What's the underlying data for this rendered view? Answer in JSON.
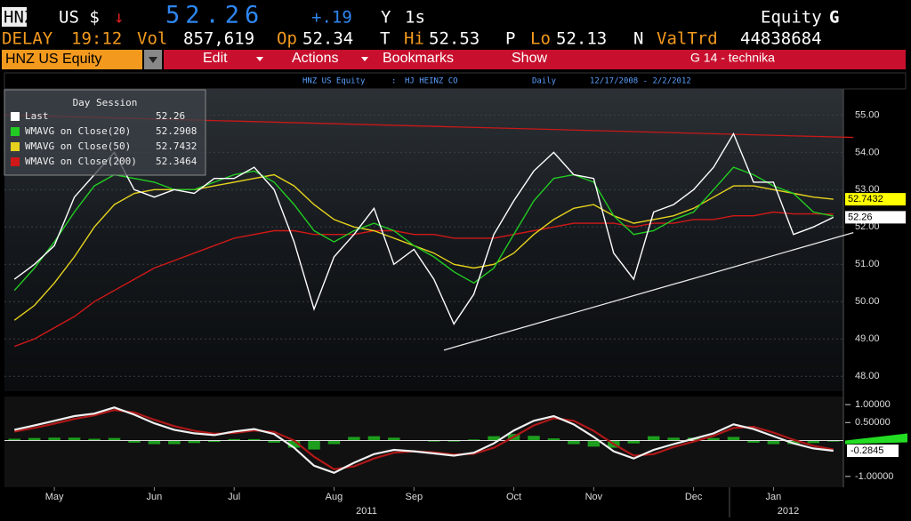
{
  "header": {
    "ticker": "HNZ",
    "currency": "US $",
    "arrow": "↓",
    "last": 52.26,
    "change": "+.19",
    "y_label": "Y",
    "interval": "1s",
    "market": "Equity",
    "menu_key": "G",
    "delay_label": "DELAY",
    "time": "19:12",
    "vol_label": "Vol",
    "volume": "857,619",
    "open_label": "Op",
    "open": 52.34,
    "t_label": "T",
    "hi_label": "Hi",
    "high": 52.53,
    "p_label": "P",
    "lo_label": "Lo",
    "low": 52.13,
    "n_label": "N",
    "valtrd_label": "ValTrd",
    "valtrd": 44838684
  },
  "toolbar": {
    "security": "HNZ US Equity",
    "menus": [
      "Edit",
      "Actions",
      "Bookmarks",
      "Show"
    ],
    "page": "G 14 - technika"
  },
  "info_bar": {
    "security": "HNZ US Equity",
    "separator": ":",
    "company": "HJ HEINZ CO",
    "period": "Daily",
    "range": "12/17/2008 - 2/2/2012"
  },
  "chart_data": [
    {
      "type": "line",
      "legend_title": "Day Session",
      "grid": true,
      "categories": [
        null,
        null,
        "May",
        null,
        null,
        null,
        null,
        "Jun",
        null,
        null,
        null,
        "Jul",
        null,
        null,
        null,
        null,
        "Aug",
        null,
        null,
        null,
        "Sep",
        null,
        null,
        null,
        null,
        "Oct",
        null,
        null,
        null,
        "Nov",
        null,
        null,
        null,
        null,
        "Dec",
        null,
        null,
        null,
        "Jan",
        null,
        null,
        null
      ],
      "x_group_labels": [
        "2011",
        "2012"
      ],
      "ylim": [
        47.6,
        55.7
      ],
      "yticks": [
        {
          "value": 48,
          "label": "48.00"
        },
        {
          "value": 49,
          "label": "49.00"
        },
        {
          "value": 50,
          "label": "50.00"
        },
        {
          "value": 51,
          "label": "51.00"
        },
        {
          "value": 52,
          "label": "52.00"
        },
        {
          "value": 53,
          "label": "53.00"
        },
        {
          "value": 54,
          "label": "54.00"
        },
        {
          "value": 55,
          "label": "55.00"
        }
      ],
      "series": [
        {
          "name": "Last",
          "color": "#ffffff",
          "values": [
            50.6,
            51.0,
            51.5,
            52.8,
            53.4,
            54.0,
            53.0,
            52.8,
            53.0,
            52.9,
            53.3,
            53.3,
            53.6,
            53.0,
            51.6,
            49.8,
            51.2,
            51.8,
            52.5,
            51.0,
            51.4,
            50.6,
            49.4,
            50.2,
            51.8,
            52.7,
            53.5,
            54.0,
            53.4,
            53.3,
            51.3,
            50.6,
            52.4,
            52.6,
            53.0,
            53.6,
            54.5,
            53.2,
            53.2,
            51.8,
            52.0,
            52.26
          ]
        },
        {
          "name": "WMAVG on Close(20)",
          "color": "#22cc22",
          "values": [
            50.3,
            50.9,
            51.6,
            52.4,
            53.1,
            53.4,
            53.3,
            53.2,
            53.0,
            53.0,
            53.2,
            53.4,
            53.5,
            53.2,
            52.6,
            51.9,
            51.6,
            51.9,
            52.1,
            51.9,
            51.5,
            51.2,
            50.8,
            50.5,
            50.9,
            51.8,
            52.7,
            53.3,
            53.4,
            53.2,
            52.3,
            51.8,
            51.9,
            52.2,
            52.4,
            53.0,
            53.6,
            53.4,
            53.1,
            52.9,
            52.4,
            52.2908
          ]
        },
        {
          "name": "WMAVG on Close(50)",
          "color": "#e6d21e",
          "values": [
            49.5,
            49.9,
            50.5,
            51.2,
            52.0,
            52.6,
            52.9,
            53.0,
            53.0,
            53.0,
            53.1,
            53.2,
            53.3,
            53.4,
            53.1,
            52.6,
            52.2,
            52.0,
            51.9,
            51.7,
            51.5,
            51.3,
            51.0,
            50.9,
            51.0,
            51.3,
            51.8,
            52.2,
            52.5,
            52.6,
            52.3,
            52.1,
            52.2,
            52.3,
            52.5,
            52.8,
            53.1,
            53.1,
            53.0,
            52.9,
            52.8,
            52.7432
          ]
        },
        {
          "name": "WMAVG on Close(200)",
          "color": "#d01818",
          "values": [
            48.8,
            49.0,
            49.3,
            49.6,
            50.0,
            50.3,
            50.6,
            50.9,
            51.1,
            51.3,
            51.5,
            51.7,
            51.8,
            51.9,
            51.9,
            51.8,
            51.8,
            51.8,
            51.9,
            51.9,
            51.8,
            51.8,
            51.7,
            51.7,
            51.7,
            51.8,
            51.9,
            52.0,
            52.1,
            52.1,
            52.1,
            52.0,
            52.1,
            52.1,
            52.2,
            52.2,
            52.3,
            52.3,
            52.4,
            52.35,
            52.35,
            52.3464
          ]
        }
      ],
      "legend_values": [
        52.26,
        52.2908,
        52.7432,
        52.3464
      ],
      "price_tags": [
        {
          "value": 52.7432,
          "color": "#ffff00"
        },
        {
          "value": 52.26,
          "color": "#ffffff"
        }
      ],
      "trendlines": [
        {
          "color": "#e8e8e8",
          "x": [
            21.5,
            42
          ],
          "y": [
            48.7,
            51.85
          ]
        },
        {
          "color": "#c81818",
          "x": [
            -0.5,
            42
          ],
          "y": [
            55.0,
            54.4
          ]
        }
      ]
    },
    {
      "type": "line",
      "ylim": [
        -1.3,
        1.225
      ],
      "yticks": [
        {
          "value": 1,
          "label": "1.00000"
        },
        {
          "value": 0.5,
          "label": "0.50000"
        },
        {
          "value": -1,
          "label": "-1.00000"
        }
      ],
      "series": [
        {
          "color": "#f0f0f0",
          "values": [
            0.3,
            0.42,
            0.55,
            0.68,
            0.75,
            0.92,
            0.72,
            0.48,
            0.3,
            0.2,
            0.15,
            0.25,
            0.32,
            0.18,
            -0.2,
            -0.7,
            -0.9,
            -0.62,
            -0.38,
            -0.26,
            -0.3,
            -0.36,
            -0.42,
            -0.34,
            -0.08,
            0.28,
            0.55,
            0.68,
            0.45,
            0.1,
            -0.3,
            -0.5,
            -0.26,
            -0.1,
            0.05,
            0.2,
            0.45,
            0.32,
            0.12,
            -0.08,
            -0.22,
            -0.2845
          ]
        },
        {
          "color": "#b01818",
          "values": [
            0.25,
            0.35,
            0.47,
            0.6,
            0.7,
            0.85,
            0.78,
            0.58,
            0.4,
            0.27,
            0.19,
            0.21,
            0.28,
            0.24,
            0.0,
            -0.45,
            -0.8,
            -0.72,
            -0.5,
            -0.34,
            -0.3,
            -0.33,
            -0.39,
            -0.37,
            -0.2,
            0.1,
            0.42,
            0.62,
            0.55,
            0.27,
            -0.1,
            -0.42,
            -0.38,
            -0.18,
            -0.03,
            0.13,
            0.35,
            0.38,
            0.22,
            0.02,
            -0.15,
            -0.25
          ]
        }
      ],
      "histogram": {
        "color": "#1e9e1e",
        "values": [
          0.05,
          0.07,
          0.08,
          0.08,
          0.05,
          0.07,
          -0.06,
          -0.1,
          -0.1,
          -0.07,
          -0.04,
          0.04,
          0.04,
          -0.06,
          -0.2,
          -0.25,
          -0.1,
          0.1,
          0.12,
          0.08,
          0.0,
          -0.03,
          -0.03,
          0.03,
          0.12,
          0.18,
          0.13,
          0.06,
          -0.1,
          -0.17,
          -0.2,
          -0.08,
          0.12,
          0.08,
          0.08,
          0.07,
          0.1,
          -0.06,
          -0.1,
          -0.1,
          -0.07,
          -0.03
        ]
      },
      "current_value": -0.2845
    }
  ]
}
